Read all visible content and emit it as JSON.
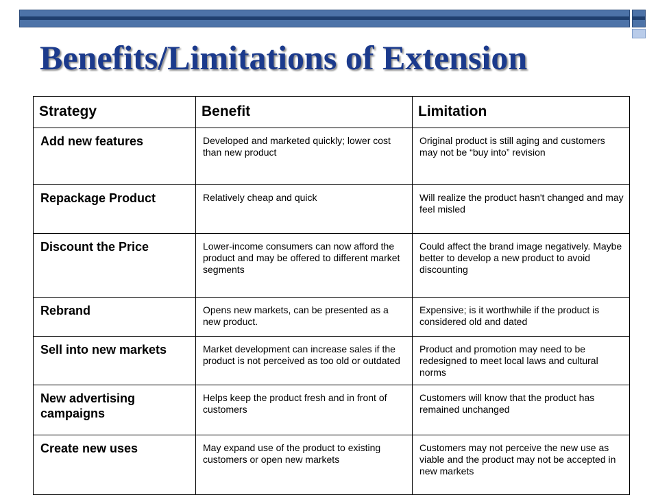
{
  "slide": {
    "title": "Benefits/Limitations of Extension"
  },
  "table": {
    "headers": [
      "Strategy",
      "Benefit",
      "Limitation"
    ],
    "rows": [
      {
        "strategy": "Add new features",
        "benefit": "Developed and marketed quickly; lower cost than new product",
        "limitation": "Original product is still aging and customers may not be “buy into” revision"
      },
      {
        "strategy": "Repackage Product",
        "benefit": "Relatively cheap and quick",
        "limitation": "Will realize the product hasn't changed and may feel misled"
      },
      {
        "strategy": "Discount the Price",
        "benefit": "Lower-income consumers can now afford the product and may be offered to different market segments",
        "limitation": "Could affect the brand image negatively. Maybe better to develop a new product to avoid discounting"
      },
      {
        "strategy": "Rebrand",
        "benefit": "Opens new markets, can be presented as a new product.",
        "limitation": "Expensive; is it worthwhile if the product is considered old and dated"
      },
      {
        "strategy": "Sell into new markets",
        "benefit": "Market development can increase sales if the product is not perceived as too old or outdated",
        "limitation": "Product and promotion may need to be redesigned to meet local laws and cultural norms"
      },
      {
        "strategy": "New advertising campaigns",
        "benefit": "Helps keep the product fresh and in front of customers",
        "limitation": "Customers will know that the product has remained unchanged"
      },
      {
        "strategy": "Create new uses",
        "benefit": "May expand use of the product to existing customers or open new markets",
        "limitation": "Customers may not perceive the new use as viable and the product may not be accepted in new markets"
      }
    ]
  },
  "colors": {
    "title": "#1b3a8c",
    "bar": "#4d73a8",
    "bar_stripe": "#1f3f6e"
  }
}
